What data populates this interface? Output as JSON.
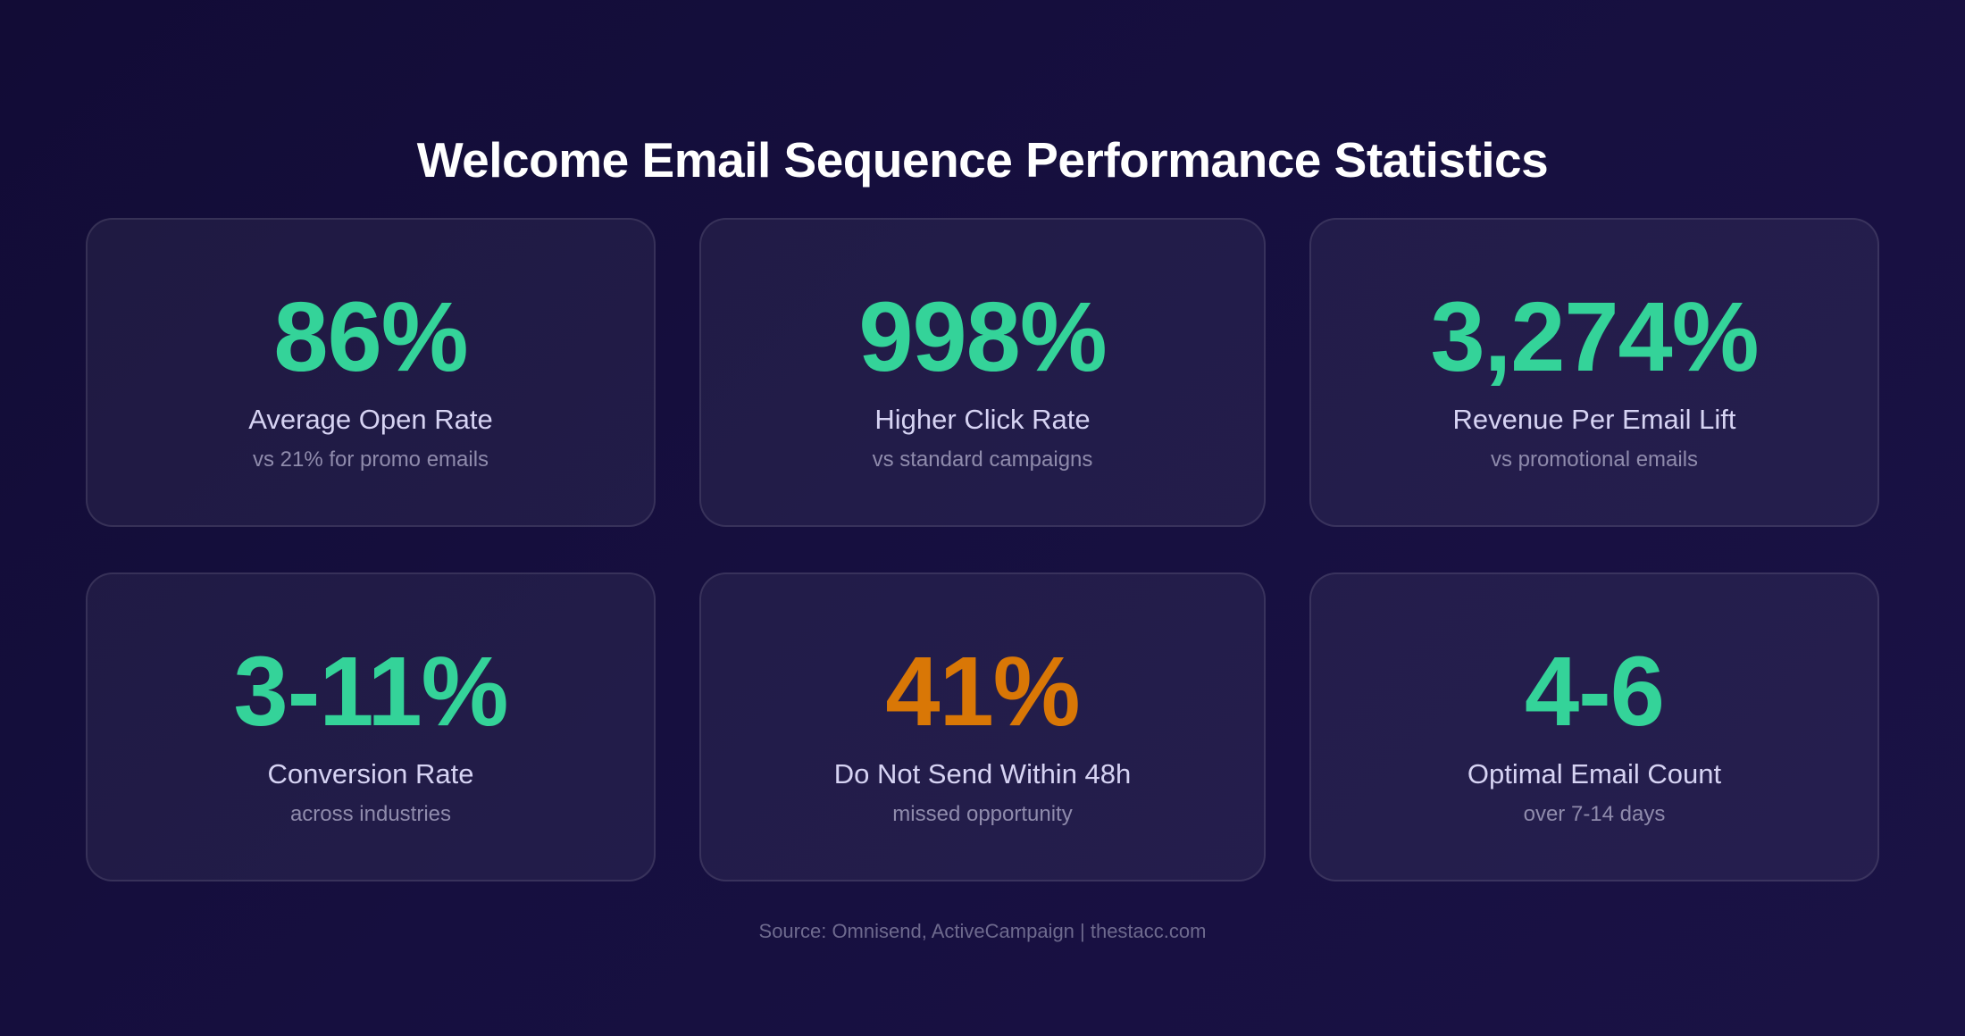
{
  "title": "Welcome Email Sequence Performance Statistics",
  "colors": {
    "accent_green": "#34d399",
    "accent_orange": "#d97706",
    "background": "#130d38"
  },
  "stats": [
    {
      "value": "86%",
      "label": "Average Open Rate",
      "sub": "vs 21% for promo emails",
      "color": "#34d399"
    },
    {
      "value": "998%",
      "label": "Higher Click Rate",
      "sub": "vs standard campaigns",
      "color": "#34d399"
    },
    {
      "value": "3,274%",
      "label": "Revenue Per Email Lift",
      "sub": "vs promotional emails",
      "color": "#34d399"
    },
    {
      "value": "3-11%",
      "label": "Conversion Rate",
      "sub": "across industries",
      "color": "#34d399"
    },
    {
      "value": "41%",
      "label": "Do Not Send Within 48h",
      "sub": "missed opportunity",
      "color": "#d97706"
    },
    {
      "value": "4-6",
      "label": "Optimal Email Count",
      "sub": "over 7-14 days",
      "color": "#34d399"
    }
  ],
  "source": "Source: Omnisend, ActiveCampaign | thestacc.com"
}
